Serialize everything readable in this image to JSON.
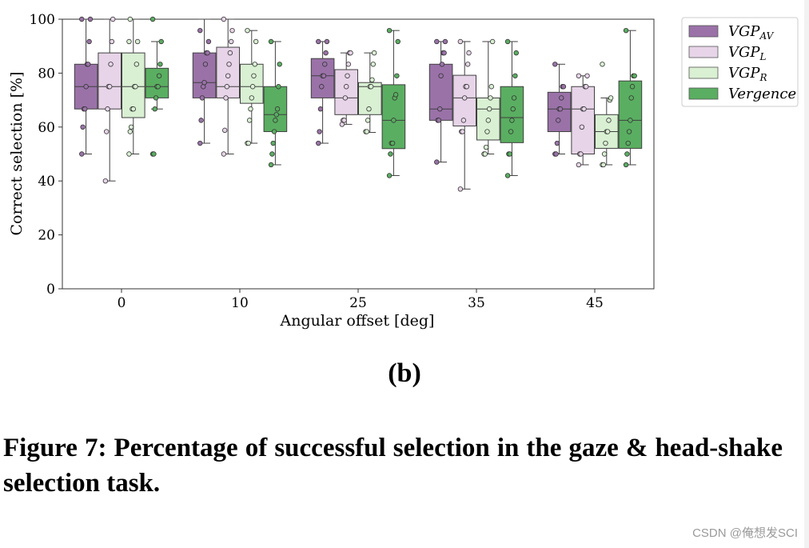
{
  "chart_data": {
    "type": "box",
    "xlabel": "Angular offset [deg]",
    "ylabel": "Correct selection [%]",
    "categories": [
      "0",
      "10",
      "25",
      "35",
      "45"
    ],
    "ylim": [
      0,
      100
    ],
    "yticks": [
      "0",
      "20",
      "40",
      "60",
      "80",
      "100"
    ],
    "legend_position": "outside-top-right",
    "grid": false,
    "series": [
      {
        "name": "VGP",
        "name_sub": "AV",
        "color": "#9a72a8",
        "edge": "#404040",
        "boxes": [
          {
            "min": 50,
            "q1": 66.7,
            "median": 75,
            "q3": 83.3,
            "max": 100,
            "points": [
              50,
              60,
              66.7,
              66.7,
              75,
              83.3,
              83.3,
              91.7,
              100,
              100
            ]
          },
          {
            "min": 54,
            "q1": 70.8,
            "median": 76.5,
            "q3": 87.5,
            "max": 100,
            "points": [
              54,
              62.5,
              70.8,
              75,
              76.5,
              83.3,
              87.5,
              87.5,
              91.7,
              95.8
            ]
          },
          {
            "min": 54,
            "q1": 70.8,
            "median": 79,
            "q3": 85.4,
            "max": 91.7,
            "points": [
              54,
              58.3,
              66.7,
              75,
              79,
              79,
              83.3,
              87.5,
              91.7,
              91.7
            ]
          },
          {
            "min": 47,
            "q1": 62.5,
            "median": 66.7,
            "q3": 83.3,
            "max": 91.7,
            "points": [
              47,
              62.5,
              62.5,
              66.7,
              79,
              83.3,
              87.5,
              87.5,
              91.7,
              91.7
            ]
          },
          {
            "min": 50,
            "q1": 58.3,
            "median": 66.7,
            "q3": 72.9,
            "max": 83.3,
            "points": [
              50,
              50,
              54,
              62.5,
              66.7,
              66.7,
              70.8,
              75,
              75,
              83.3
            ]
          }
        ]
      },
      {
        "name": "VGP",
        "name_sub": "L",
        "color": "#e7d4e8",
        "edge": "#404040",
        "boxes": [
          {
            "min": 40,
            "q1": 66.7,
            "median": 75,
            "q3": 87.5,
            "max": 100,
            "points": [
              40,
              58.3,
              66.7,
              75,
              75,
              83.3,
              91.7,
              100
            ]
          },
          {
            "min": 50,
            "q1": 70.8,
            "median": 75,
            "q3": 89.6,
            "max": 100,
            "points": [
              50,
              58.8,
              70.8,
              75,
              79,
              83.3,
              87.5,
              91.7,
              95.8,
              100
            ]
          },
          {
            "min": 61,
            "q1": 64.6,
            "median": 70.8,
            "q3": 81.3,
            "max": 87.5,
            "points": [
              61,
              62.5,
              62.5,
              70.8,
              75,
              79,
              83.3,
              87.5,
              87.5
            ]
          },
          {
            "min": 37,
            "q1": 60.4,
            "median": 70.8,
            "q3": 79.2,
            "max": 91.7,
            "points": [
              37,
              58.3,
              58.3,
              62.5,
              70.8,
              75,
              75,
              83.3,
              87.5,
              91.7
            ]
          },
          {
            "min": 46,
            "q1": 50,
            "median": 66.7,
            "q3": 75,
            "max": 79,
            "points": [
              46,
              50,
              50,
              60,
              66.7,
              66.7,
              75,
              75,
              79,
              79
            ]
          }
        ]
      },
      {
        "name": "VGP",
        "name_sub": "R",
        "color": "#d9f0d3",
        "edge": "#404040",
        "boxes": [
          {
            "min": 50,
            "q1": 63.5,
            "median": 75,
            "q3": 87.5,
            "max": 100,
            "points": [
              50,
              58.3,
              60,
              66.7,
              66.7,
              75,
              75,
              83.3,
              91.7,
              91.7,
              100
            ]
          },
          {
            "min": 54,
            "q1": 68.8,
            "median": 75,
            "q3": 83.3,
            "max": 95.8,
            "points": [
              54,
              54,
              62.5,
              66.7,
              70.8,
              75,
              79,
              83.3,
              91.7,
              95.8
            ]
          },
          {
            "min": 58,
            "q1": 64.6,
            "median": 75,
            "q3": 76.5,
            "max": 87.5,
            "points": [
              58.3,
              58.3,
              62.5,
              66.7,
              75,
              75,
              77.5,
              83.3,
              87.5
            ]
          },
          {
            "min": 50,
            "q1": 55.2,
            "median": 66.7,
            "q3": 70.8,
            "max": 91.7,
            "points": [
              50,
              50,
              52.5,
              58.3,
              62.5,
              66.7,
              70.8,
              75,
              91.7
            ]
          },
          {
            "min": 46,
            "q1": 52.1,
            "median": 58.3,
            "q3": 64.6,
            "max": 70.8,
            "points": [
              46,
              46,
              50,
              54,
              58.3,
              58.3,
              62.5,
              70,
              70.8,
              83.3
            ]
          }
        ]
      },
      {
        "name": "Vergence",
        "name_sub": "",
        "color": "#5aae61",
        "edge": "#404040",
        "boxes": [
          {
            "min": 66.7,
            "q1": 70.8,
            "median": 75,
            "q3": 81.8,
            "max": 91.7,
            "points": [
              50,
              50,
              66.7,
              70.8,
              75,
              75,
              79,
              83.3,
              91.7,
              100
            ]
          },
          {
            "min": 46,
            "q1": 58.3,
            "median": 64.6,
            "q3": 75,
            "max": 91.7,
            "points": [
              46,
              50,
              54,
              58.3,
              62.5,
              64.6,
              66.7,
              75,
              83.3,
              91.7
            ]
          },
          {
            "min": 42,
            "q1": 52,
            "median": 62.5,
            "q3": 75.7,
            "max": 95.8,
            "points": [
              42,
              50,
              54,
              54,
              62.5,
              70.8,
              72,
              79,
              91.7,
              95.8
            ]
          },
          {
            "min": 42,
            "q1": 54.2,
            "median": 63.5,
            "q3": 75,
            "max": 91.7,
            "points": [
              42,
              50,
              50,
              58.3,
              62.5,
              66.7,
              70.8,
              79,
              87.5,
              91.7
            ]
          },
          {
            "min": 46,
            "q1": 52.1,
            "median": 62.5,
            "q3": 77.1,
            "max": 95.8,
            "points": [
              46,
              50,
              54,
              58.3,
              62.5,
              70.8,
              75,
              79,
              79,
              95.8
            ]
          }
        ]
      }
    ]
  },
  "figure": {
    "subfig_label": "(b)",
    "caption": "Figure 7: Percentage of successful selection in the gaze & head-shake selection task."
  },
  "watermark": "CSDN @俺想发SCI"
}
